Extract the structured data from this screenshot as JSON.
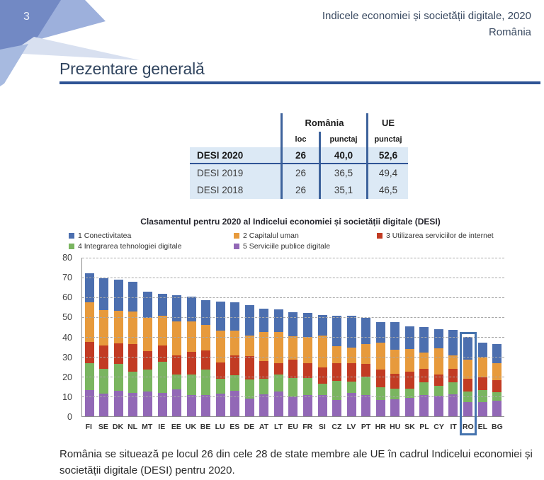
{
  "page": {
    "number": "3"
  },
  "header": {
    "title_line1": "Indicele economiei și societății digitale, 2020",
    "title_line2": "România"
  },
  "section": {
    "title": "Prezentare generală"
  },
  "summary_table": {
    "col_groups": {
      "romania": "România",
      "ue": "UE"
    },
    "sub_headers": {
      "loc": "loc",
      "punctaj_ro": "punctaj",
      "punctaj_ue": "punctaj"
    },
    "rows": [
      {
        "label": "DESI 2020",
        "loc": "26",
        "punctaj": "40,0",
        "ue_punctaj": "52,6"
      },
      {
        "label": "DESI 2019",
        "loc": "26",
        "punctaj": "36,5",
        "ue_punctaj": "49,4"
      },
      {
        "label": "DESI 2018",
        "loc": "26",
        "punctaj": "35,1",
        "ue_punctaj": "46,5"
      }
    ]
  },
  "chart_data": {
    "type": "bar",
    "stacked": true,
    "title": "Clasamentul pentru 2020 al Indicelui economiei și societății digitale (DESI)",
    "categories": [
      "FI",
      "SE",
      "DK",
      "NL",
      "MT",
      "IE",
      "EE",
      "UK",
      "BE",
      "LU",
      "ES",
      "DE",
      "AT",
      "LT",
      "EU",
      "FR",
      "SI",
      "CZ",
      "LV",
      "PT",
      "HR",
      "HU",
      "SK",
      "PL",
      "CY",
      "IT",
      "RO",
      "EL",
      "BG"
    ],
    "series": [
      {
        "name": "1 Conectivitatea",
        "color": "#4c6faf",
        "values": [
          14.8,
          16.2,
          15.9,
          14.8,
          13.1,
          11.0,
          13.1,
          12.4,
          12.5,
          14.7,
          14.2,
          15.2,
          11.9,
          11.3,
          12.4,
          12.2,
          10.6,
          15.3,
          16.0,
          13.1,
          10.5,
          14.0,
          11.1,
          13.0,
          9.4,
          12.8,
          11.5,
          7.7,
          9.6
        ]
      },
      {
        "name": "2 Capitalul uman",
        "color": "#e79a3c",
        "values": [
          19.9,
          17.6,
          16.4,
          16.4,
          16.7,
          14.9,
          17.2,
          15.6,
          13.0,
          16.0,
          12.7,
          10.6,
          14.4,
          15.8,
          11.7,
          13.2,
          16.0,
          8.8,
          7.9,
          10.0,
          13.6,
          12.1,
          11.5,
          8.2,
          13.2,
          7.0,
          9.4,
          9.8,
          8.6
        ]
      },
      {
        "name": "3 Utilizarea serviciilor de internet",
        "color": "#c23b23",
        "values": [
          10.8,
          12.0,
          10.3,
          14.1,
          9.4,
          8.3,
          9.6,
          11.2,
          9.7,
          8.5,
          10.0,
          11.7,
          9.2,
          5.9,
          9.1,
          7.4,
          8.0,
          8.8,
          9.2,
          6.5,
          8.8,
          7.5,
          8.5,
          6.7,
          5.7,
          6.5,
          6.7,
          6.6,
          6.2
        ]
      },
      {
        "name": "4 Integrarea tehnologiei digitale",
        "color": "#7ab560",
        "values": [
          13.5,
          12.4,
          13.6,
          10.6,
          11.1,
          15.8,
          7.7,
          10.6,
          12.9,
          7.3,
          7.7,
          9.8,
          7.6,
          8.5,
          9.4,
          8.8,
          6.0,
          9.7,
          5.8,
          9.4,
          6.5,
          5.4,
          4.9,
          6.5,
          5.1,
          6.1,
          5.3,
          5.9,
          4.0
        ]
      },
      {
        "name": "5 Serviciile publice digitale",
        "color": "#9268b6",
        "values": [
          13.3,
          11.5,
          12.9,
          11.8,
          12.4,
          11.8,
          13.5,
          10.6,
          10.6,
          11.5,
          12.9,
          8.8,
          11.2,
          12.4,
          10.0,
          10.6,
          10.6,
          8.2,
          11.8,
          10.6,
          8.2,
          8.5,
          9.2,
          10.6,
          10.4,
          11.2,
          7.1,
          7.3,
          8.0
        ]
      }
    ],
    "ylim": [
      0,
      80
    ],
    "yticks": [
      0,
      10,
      20,
      30,
      40,
      50,
      60,
      70,
      80
    ],
    "grid": "horizontal-dashed",
    "legend_position": "top",
    "highlighted_category": "RO"
  },
  "footer": {
    "text": "România se situează pe locul 26 din cele 28 de state membre ale UE în cadrul Indicelui economiei și societății digitale (DESI) pentru 2020."
  }
}
